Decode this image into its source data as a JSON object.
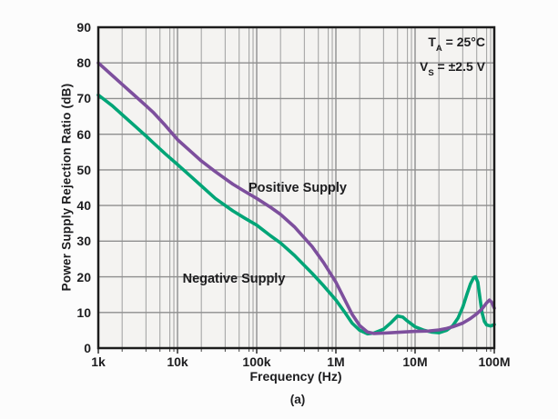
{
  "page": {
    "caption": "(a)"
  },
  "chart_data": {
    "type": "line",
    "title": "",
    "xlabel": "Frequency (Hz)",
    "ylabel": "Power Supply Rejection Ratio (dB)",
    "x_scale": "log",
    "xlim": [
      1000,
      100000000
    ],
    "ylim": [
      0,
      90
    ],
    "x_tick_labels": [
      "1k",
      "10k",
      "100k",
      "1M",
      "10M",
      "100M"
    ],
    "y_ticks": [
      0,
      10,
      20,
      30,
      40,
      50,
      60,
      70,
      80,
      90
    ],
    "grid": {
      "show": true,
      "minor_multiples": [
        2,
        4,
        6,
        8,
        9
      ],
      "major_color": "#8e8e8e",
      "minor_color": "#a6a6a6",
      "border_color": "#1c1c1c"
    },
    "legend_position": "inline-labels",
    "annotations": [
      {
        "pre": "T",
        "sub": "A",
        "post": " = 25°C"
      },
      {
        "pre": "V",
        "sub": "S",
        "post": " = ±2.5 V"
      }
    ],
    "series": [
      {
        "name": "Positive Supply",
        "color": "#7d4f9d",
        "x": [
          1000,
          1500,
          2000,
          3000,
          4000,
          5000,
          7000,
          10000,
          15000,
          20000,
          30000,
          50000,
          70000,
          100000,
          150000,
          200000,
          300000,
          500000,
          700000,
          1000000,
          1300000,
          1600000,
          2000000,
          2500000,
          3000000,
          4000000,
          5000000,
          7000000,
          10000000,
          15000000,
          20000000,
          25000000,
          30000000,
          40000000,
          50000000,
          60000000,
          70000000,
          80000000,
          87000000,
          93000000,
          100000000
        ],
        "y": [
          80,
          76.5,
          74,
          70.5,
          68,
          66,
          62.5,
          58.5,
          55,
          52.5,
          49.5,
          46,
          44,
          42,
          39.5,
          37.5,
          34,
          28.5,
          24,
          18.5,
          13.5,
          9.5,
          6.3,
          4.5,
          4.1,
          4.2,
          4.3,
          4.5,
          4.7,
          4.8,
          5.1,
          5.5,
          6,
          7,
          8.3,
          9.6,
          11,
          12.7,
          13.5,
          12.8,
          11.2
        ]
      },
      {
        "name": "Negative Supply",
        "color": "#00a577",
        "x": [
          1000,
          1500,
          2000,
          3000,
          4000,
          5000,
          7000,
          10000,
          15000,
          20000,
          30000,
          50000,
          70000,
          100000,
          150000,
          200000,
          300000,
          500000,
          700000,
          1000000,
          1300000,
          1600000,
          2000000,
          2500000,
          3000000,
          4000000,
          5000000,
          6000000,
          7000000,
          8000000,
          10000000,
          13000000,
          16000000,
          20000000,
          25000000,
          30000000,
          35000000,
          40000000,
          45000000,
          50000000,
          55000000,
          58000000,
          62000000,
          66000000,
          70000000,
          75000000,
          80000000,
          90000000,
          100000000
        ],
        "y": [
          71,
          68,
          65.5,
          62,
          59.5,
          57.5,
          54.5,
          51.5,
          48,
          45.5,
          42,
          38.5,
          36.5,
          34.5,
          31.5,
          29.5,
          26,
          21,
          17.5,
          13.5,
          10,
          7,
          5,
          4.0,
          4.2,
          5.3,
          7.2,
          9,
          8.7,
          7.6,
          6.0,
          5.0,
          4.5,
          4.3,
          5.0,
          6.3,
          8.5,
          11.5,
          15,
          18,
          19.8,
          20,
          18.5,
          14,
          10,
          7.5,
          6.5,
          6.2,
          6.6
        ]
      }
    ]
  }
}
